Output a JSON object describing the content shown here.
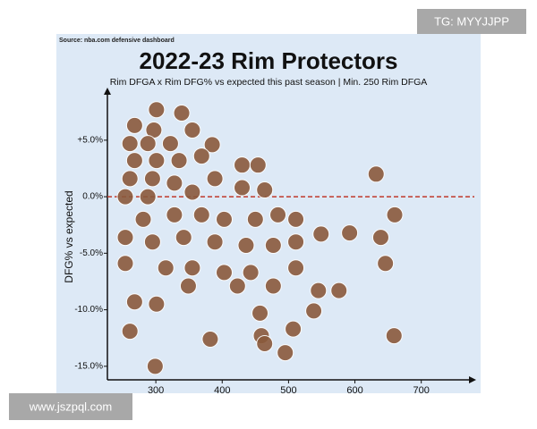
{
  "source": "Source: nba.com defensive dashboard",
  "watermarks": [
    "TG: MYYJJPP",
    "www.jszpql.com"
  ],
  "chart_data": {
    "type": "scatter",
    "title": "2022-23 Rim Protectors",
    "subtitle": "Rim DFGA x Rim DFG% vs expected this past season | Min. 250 Rim DFGA",
    "y_label": "DFG% vs expected",
    "xlim": [
      227,
      780
    ],
    "ylim": [
      -16.2,
      9.1
    ],
    "xticks": [
      300,
      400,
      500,
      600,
      700
    ],
    "yticks": [
      {
        "value": 5,
        "label": "+5.0%"
      },
      {
        "value": 0,
        "label": "0.0%"
      },
      {
        "value": -5,
        "label": "-5.0%"
      },
      {
        "value": -10,
        "label": "-10.0%"
      },
      {
        "value": -15,
        "label": "-15.0%"
      }
    ],
    "hline": 0,
    "hline_color": "#c0392b",
    "color": "#8a5a3c",
    "x": [
      301,
      339,
      268,
      297,
      355,
      261,
      288,
      322,
      385,
      268,
      301,
      335,
      369,
      430,
      454,
      632,
      261,
      295,
      328,
      389,
      254,
      288,
      355,
      430,
      464,
      660,
      639,
      592,
      549,
      511,
      484,
      450,
      403,
      369,
      328,
      281,
      254,
      295,
      342,
      389,
      436,
      477,
      511,
      254,
      315,
      355,
      403,
      443,
      511,
      646,
      477,
      545,
      576,
      349,
      423,
      268,
      301,
      261,
      382,
      457,
      538,
      459,
      507,
      464,
      495,
      659,
      299
    ],
    "y": [
      7.7,
      7.4,
      6.3,
      5.9,
      5.9,
      4.7,
      4.7,
      4.7,
      4.6,
      3.2,
      3.2,
      3.2,
      3.6,
      2.8,
      2.8,
      2.0,
      1.6,
      1.6,
      1.2,
      1.6,
      0,
      0,
      0.4,
      0.8,
      0.6,
      -1.6,
      -3.6,
      -3.2,
      -3.3,
      -2.0,
      -1.6,
      -2.0,
      -2.0,
      -1.6,
      -1.6,
      -2.0,
      -3.6,
      -4.0,
      -3.6,
      -4.0,
      -4.3,
      -4.3,
      -4.0,
      -5.9,
      -6.3,
      -6.3,
      -6.7,
      -6.7,
      -6.3,
      -5.9,
      -7.9,
      -8.3,
      -8.3,
      -7.9,
      -7.9,
      -9.3,
      -9.5,
      -11.9,
      -12.6,
      -10.3,
      -10.1,
      -12.3,
      -11.7,
      -13.0,
      -13.8,
      -12.3,
      -15.0
    ]
  }
}
